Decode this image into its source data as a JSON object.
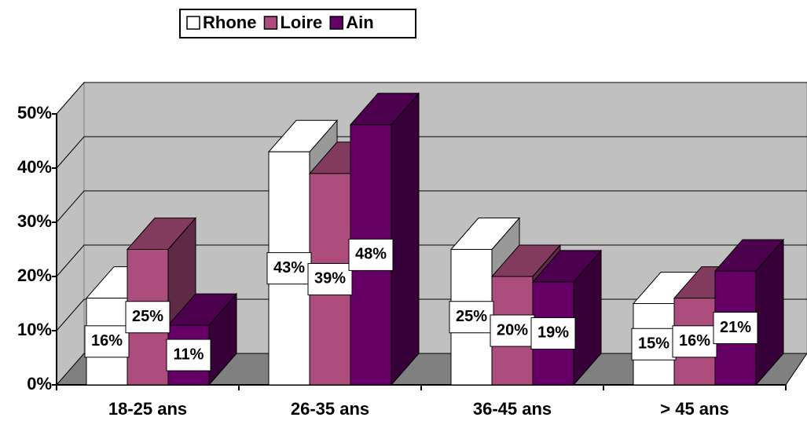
{
  "chart_data": {
    "type": "bar3d",
    "categories": [
      "18-25 ans",
      "26-35 ans",
      "36-45 ans",
      "> 45 ans"
    ],
    "series": [
      {
        "name": "Rhone",
        "color": "#ffffff",
        "values": [
          16,
          43,
          25,
          15
        ],
        "value_labels": [
          "16%",
          "43%",
          "25%",
          "15%"
        ]
      },
      {
        "name": "Loire",
        "color": "#ad4d7d",
        "values": [
          25,
          39,
          20,
          16
        ],
        "value_labels": [
          "25%",
          "39%",
          "20%",
          "16%"
        ]
      },
      {
        "name": "Ain",
        "color": "#660066",
        "values": [
          11,
          48,
          19,
          21
        ],
        "value_labels": [
          "11%",
          "48%",
          "19%",
          "21%"
        ]
      }
    ],
    "ylim": [
      0,
      50
    ],
    "yticks": [
      {
        "value": 0,
        "label": "0%"
      },
      {
        "value": 10,
        "label": "10%"
      },
      {
        "value": 20,
        "label": "20%"
      },
      {
        "value": 30,
        "label": "30%"
      },
      {
        "value": 40,
        "label": "40%"
      },
      {
        "value": 50,
        "label": "50%"
      }
    ],
    "grid": true,
    "legend": "top"
  }
}
